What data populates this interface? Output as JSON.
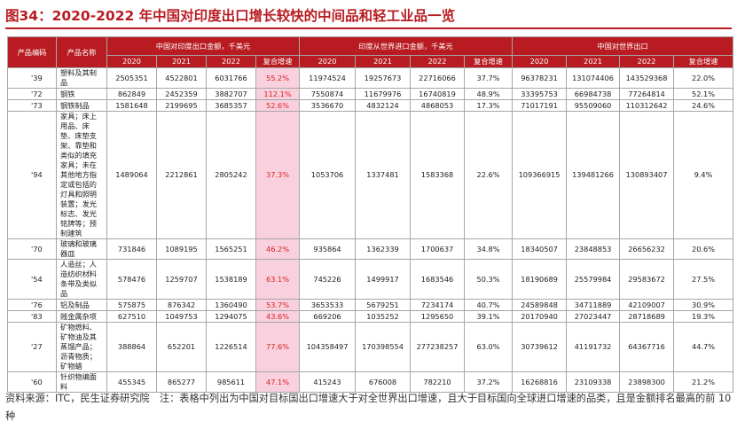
{
  "title": "图34：2020-2022 年中国对印度出口增长较快的中间品和轻工业品一览",
  "header": {
    "code": "产品编码",
    "name": "产品名称",
    "group1": "中国对印度出口金额，千美元",
    "group2": "印度从世界进口金额，千美元",
    "group3": "中国对世界出口",
    "years": [
      "2020",
      "2021",
      "2022"
    ],
    "cagr": "复合增速"
  },
  "rows": [
    {
      "code": "'39",
      "name": "塑料及其制品",
      "cn_in": [
        "2505351",
        "4522801",
        "6031766"
      ],
      "cn_in_cagr": "55.2%",
      "in_w": [
        "11974524",
        "19257673",
        "22716066"
      ],
      "in_w_cagr": "37.7%",
      "cn_w": [
        "96378231",
        "131074406",
        "143529368"
      ],
      "cn_w_cagr": "22.0%"
    },
    {
      "code": "'72",
      "name": "钢铁",
      "cn_in": [
        "862849",
        "2452359",
        "3882707"
      ],
      "cn_in_cagr": "112.1%",
      "in_w": [
        "7550874",
        "11679976",
        "16740819"
      ],
      "in_w_cagr": "48.9%",
      "cn_w": [
        "33395753",
        "66984738",
        "77264814"
      ],
      "cn_w_cagr": "52.1%"
    },
    {
      "code": "'73",
      "name": "钢铁制品",
      "cn_in": [
        "1581648",
        "2199695",
        "3685357"
      ],
      "cn_in_cagr": "52.6%",
      "in_w": [
        "3536670",
        "4832124",
        "4868053"
      ],
      "in_w_cagr": "17.3%",
      "cn_w": [
        "71017191",
        "95509060",
        "110312642"
      ],
      "cn_w_cagr": "24.6%"
    },
    {
      "code": "'94",
      "name": "家具；床上用品、床垫、床垫支架、靠垫和类似的填充家具；未在其他地方指定或包括的灯具和照明装置；发光标志、发光铭牌等；预制建筑",
      "cn_in": [
        "1489064",
        "2212861",
        "2805242"
      ],
      "cn_in_cagr": "37.3%",
      "in_w": [
        "1053706",
        "1337481",
        "1583368"
      ],
      "in_w_cagr": "22.6%",
      "cn_w": [
        "109366915",
        "139481266",
        "130893407"
      ],
      "cn_w_cagr": "9.4%"
    },
    {
      "code": "'70",
      "name": "玻璃和玻璃器皿",
      "cn_in": [
        "731846",
        "1089195",
        "1565251"
      ],
      "cn_in_cagr": "46.2%",
      "in_w": [
        "935864",
        "1362339",
        "1700637"
      ],
      "in_w_cagr": "34.8%",
      "cn_w": [
        "18340507",
        "23848853",
        "26656232"
      ],
      "cn_w_cagr": "20.6%"
    },
    {
      "code": "'54",
      "name": "人造丝；人造纺织材料条带及类似品",
      "cn_in": [
        "578476",
        "1259707",
        "1538189"
      ],
      "cn_in_cagr": "63.1%",
      "in_w": [
        "745226",
        "1499917",
        "1683546"
      ],
      "in_w_cagr": "50.3%",
      "cn_w": [
        "18190689",
        "25579984",
        "29583672"
      ],
      "cn_w_cagr": "27.5%"
    },
    {
      "code": "'76",
      "name": "铝及制品",
      "cn_in": [
        "575875",
        "876342",
        "1360490"
      ],
      "cn_in_cagr": "53.7%",
      "in_w": [
        "3653533",
        "5679251",
        "7234174"
      ],
      "in_w_cagr": "40.7%",
      "cn_w": [
        "24589848",
        "34711889",
        "42109007"
      ],
      "cn_w_cagr": "30.9%"
    },
    {
      "code": "'83",
      "name": "贱金属杂项",
      "cn_in": [
        "627510",
        "1049753",
        "1294075"
      ],
      "cn_in_cagr": "43.6%",
      "in_w": [
        "669206",
        "1035252",
        "1295650"
      ],
      "in_w_cagr": "39.1%",
      "cn_w": [
        "20170940",
        "27023447",
        "28718689"
      ],
      "cn_w_cagr": "19.3%"
    },
    {
      "code": "'27",
      "name": "矿物燃料、矿物油及其蒸馏产品；沥青物质；矿物蜡",
      "cn_in": [
        "388864",
        "652201",
        "1226514"
      ],
      "cn_in_cagr": "77.6%",
      "in_w": [
        "104358497",
        "170398554",
        "277238257"
      ],
      "in_w_cagr": "63.0%",
      "cn_w": [
        "30739612",
        "41191732",
        "64367716"
      ],
      "cn_w_cagr": "44.7%"
    },
    {
      "code": "'60",
      "name": "针织物编面料",
      "cn_in": [
        "455345",
        "865277",
        "985611"
      ],
      "cn_in_cagr": "47.1%",
      "in_w": [
        "415243",
        "676008",
        "782210"
      ],
      "in_w_cagr": "37.2%",
      "cn_w": [
        "16268816",
        "23109338",
        "23898300"
      ],
      "cn_w_cagr": "21.2%"
    }
  ],
  "footnote": "资料来源：ITC，民生证券研究院　注：表格中列出为中国对目标国出口增速大于对全世界出口增速，且大于目标国向全球进口增速的品类，且是金额排名最高的前 10 种"
}
